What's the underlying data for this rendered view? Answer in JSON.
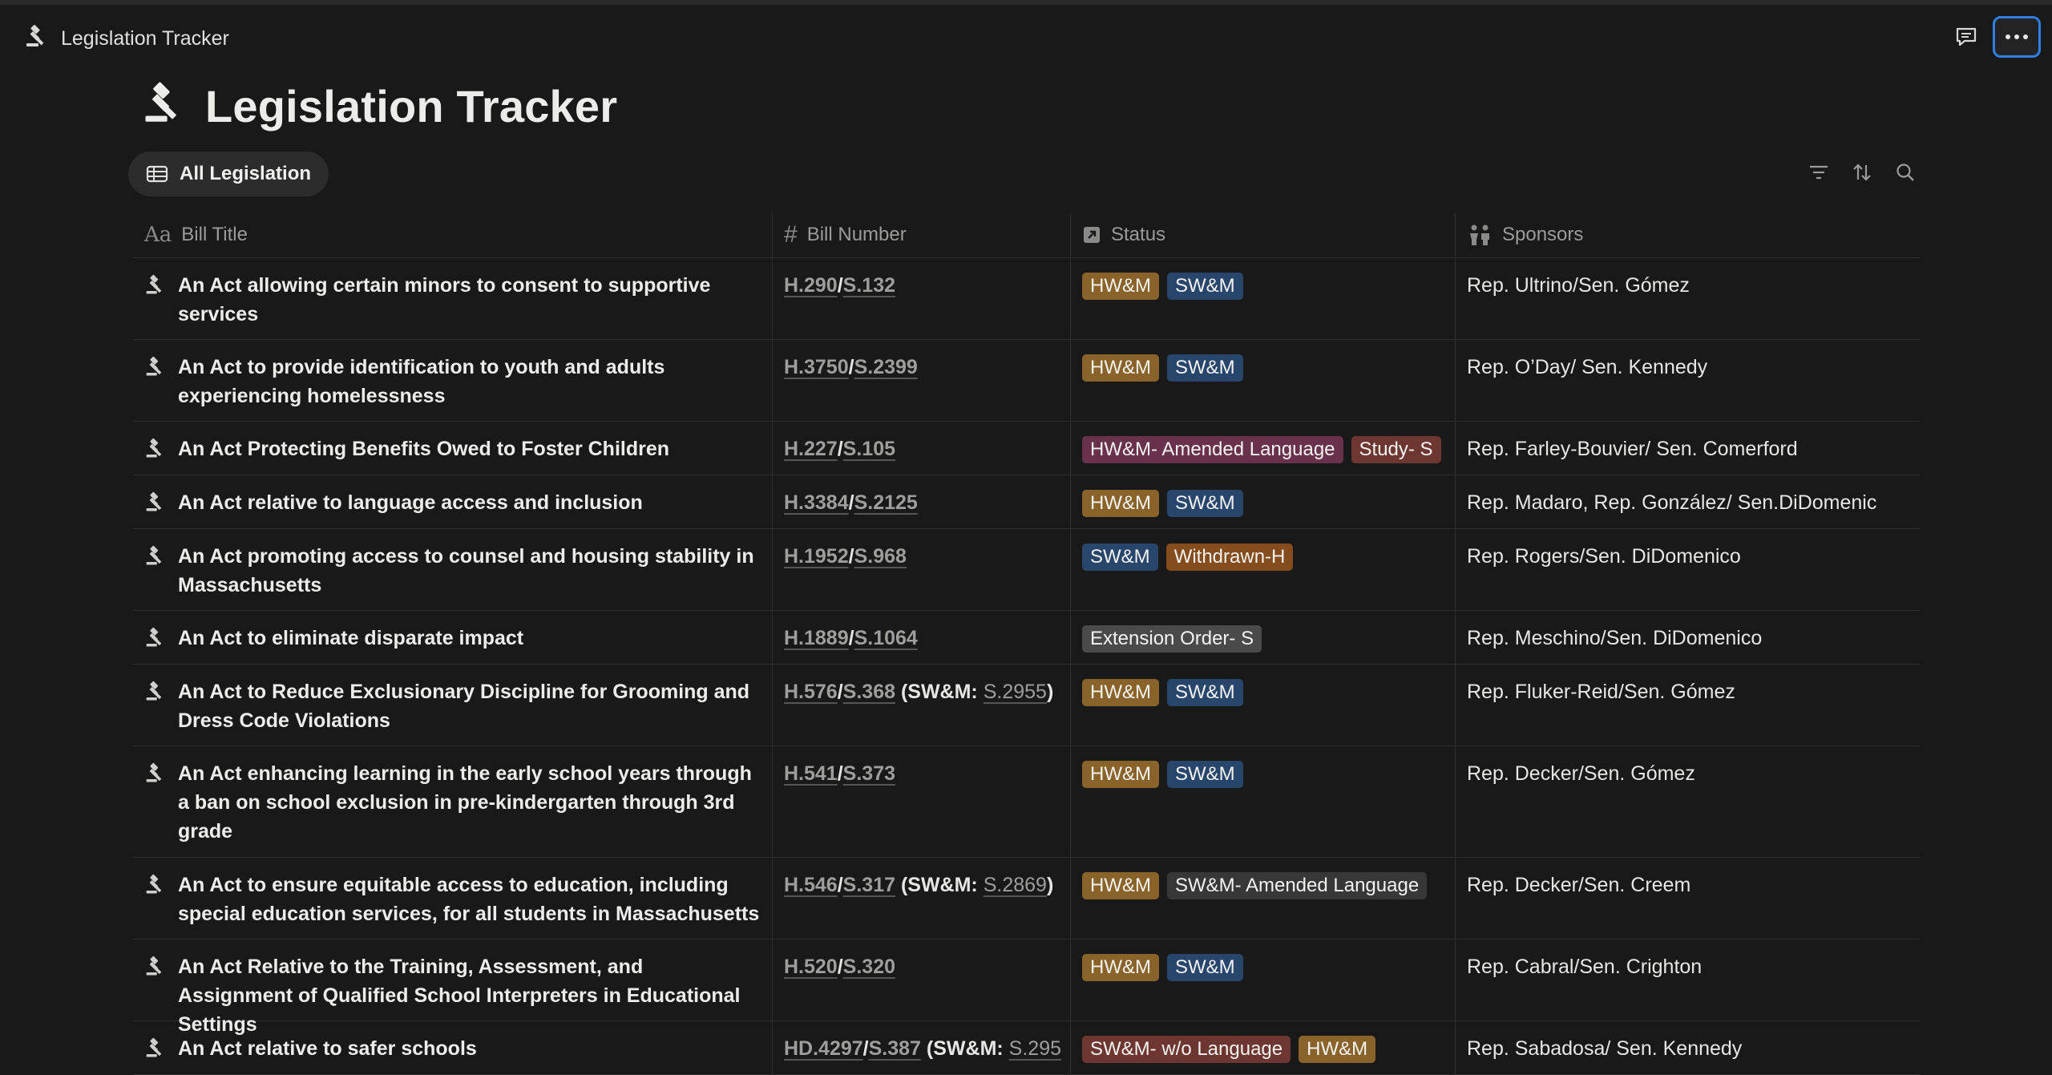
{
  "breadcrumb": {
    "title": "Legislation Tracker"
  },
  "page": {
    "title": "Legislation Tracker"
  },
  "view": {
    "label": "All Legislation"
  },
  "columns": {
    "title": "Bill Title",
    "number": "Bill Number",
    "status": "Status",
    "sponsors": "Sponsors"
  },
  "colors": {
    "hwm": "#89632a",
    "swm": "#28456c",
    "amended_pink": "#69314c",
    "study_orange": "#854c1d",
    "red": "#6e3630",
    "gray": "#4a4a4a",
    "dark": "#373737"
  },
  "rows": [
    {
      "title": "An Act allowing certain minors to consent to supportive services",
      "num": [
        {
          "t": "H.290",
          "link": true
        },
        {
          "t": "/"
        },
        {
          "t": "S.132",
          "link": true
        }
      ],
      "tags": [
        {
          "t": "HW&M",
          "c": "hwm"
        },
        {
          "t": "SW&M",
          "c": "swm"
        }
      ],
      "sponsors": "Rep. Ultrino/Sen. Gómez",
      "h": 101
    },
    {
      "title": "An Act to provide identification to youth and adults experiencing homelessness",
      "num": [
        {
          "t": "H.3750",
          "link": true
        },
        {
          "t": "/"
        },
        {
          "t": "S.2399",
          "link": true
        }
      ],
      "tags": [
        {
          "t": "HW&M",
          "c": "hwm"
        },
        {
          "t": "SW&M",
          "c": "swm"
        }
      ],
      "sponsors": "Rep. O’Day/ Sen. Kennedy",
      "h": 101
    },
    {
      "title": "An Act Protecting Benefits Owed to Foster Children",
      "num": [
        {
          "t": "H.227",
          "link": true
        },
        {
          "t": "/"
        },
        {
          "t": "S.105",
          "link": true
        }
      ],
      "tags": [
        {
          "t": "HW&M- Amended Language",
          "c": "amended_pink"
        },
        {
          "t": "Study- S",
          "c": "red"
        }
      ],
      "sponsors": "Rep. Farley-Bouvier/ Sen. Comerford",
      "h": 66
    },
    {
      "title": "An Act relative to language access and inclusion",
      "num": [
        {
          "t": "H.3384",
          "link": true
        },
        {
          "t": "/"
        },
        {
          "t": "S.2125",
          "link": true
        }
      ],
      "tags": [
        {
          "t": "HW&M",
          "c": "hwm"
        },
        {
          "t": "SW&M",
          "c": "swm"
        }
      ],
      "sponsors": "Rep. Madaro, Rep. González/ Sen.DiDomenic",
      "h": 66
    },
    {
      "title": "An Act promoting  access to counsel and housing stability in Massachusetts",
      "num": [
        {
          "t": "H.1952",
          "link": true
        },
        {
          "t": "/"
        },
        {
          "t": "S.968",
          "link": true
        }
      ],
      "tags": [
        {
          "t": "SW&M",
          "c": "swm"
        },
        {
          "t": "Withdrawn-H",
          "c": "study_orange"
        }
      ],
      "sponsors": "Rep. Rogers/Sen. DiDomenico",
      "h": 101
    },
    {
      "title": "An Act to eliminate disparate impact",
      "num": [
        {
          "t": "H.1889",
          "link": true
        },
        {
          "t": "/"
        },
        {
          "t": "S.1064",
          "link": true
        }
      ],
      "tags": [
        {
          "t": "Extension Order- S",
          "c": "gray"
        }
      ],
      "sponsors": "Rep. Meschino/Sen. DiDomenico",
      "h": 66
    },
    {
      "title": "An Act to Reduce Exclusionary Discipline for Grooming and Dress Code Violations",
      "num": [
        {
          "t": "H.576",
          "link": true
        },
        {
          "t": "/"
        },
        {
          "t": "S.368",
          "link": true
        },
        {
          "t": " (SW&M: "
        },
        {
          "t": "S.2955",
          "light": true
        },
        {
          "t": ")"
        }
      ],
      "tags": [
        {
          "t": "HW&M",
          "c": "hwm"
        },
        {
          "t": "SW&M",
          "c": "swm"
        }
      ],
      "sponsors": "Rep. Fluker-Reid/Sen. Gómez",
      "h": 101
    },
    {
      "title": "An Act enhancing learning in the early school years through a ban on school exclusion in pre-kindergarten through 3rd grade",
      "num": [
        {
          "t": "H.541",
          "link": true
        },
        {
          "t": "/"
        },
        {
          "t": "S.373",
          "link": true
        }
      ],
      "tags": [
        {
          "t": "HW&M",
          "c": "hwm"
        },
        {
          "t": "SW&M",
          "c": "swm"
        }
      ],
      "sponsors": "Rep. Decker/Sen. Gómez",
      "h": 138
    },
    {
      "title": "An Act to ensure equitable access to education, including special education services, for all students in Massachusetts",
      "num": [
        {
          "t": "H.546",
          "link": true
        },
        {
          "t": "/"
        },
        {
          "t": "S.317",
          "link": true
        },
        {
          "t": " (SW&M: "
        },
        {
          "t": "S.2869",
          "light": true
        },
        {
          "t": ")"
        }
      ],
      "tags": [
        {
          "t": "HW&M",
          "c": "hwm"
        },
        {
          "t": "SW&M- Amended Language",
          "c": "dark"
        }
      ],
      "sponsors": "Rep. Decker/Sen. Creem",
      "h": 101
    },
    {
      "title": "An Act Relative to the Training, Assessment, and Assignment of Qualified School Interpreters in Educational Settings",
      "num": [
        {
          "t": "H.520",
          "link": true
        },
        {
          "t": "/"
        },
        {
          "t": "S.320",
          "link": true
        }
      ],
      "tags": [
        {
          "t": "HW&M",
          "c": "hwm"
        },
        {
          "t": "SW&M",
          "c": "swm"
        }
      ],
      "sponsors": "Rep. Cabral/Sen. Crighton",
      "h": 101
    },
    {
      "title": "An Act relative to safer schools",
      "num": [
        {
          "t": "HD.4297",
          "link": true
        },
        {
          "t": "/"
        },
        {
          "t": "S.387",
          "link": true
        },
        {
          "t": " (SW&M: "
        },
        {
          "t": "S.295",
          "light": true
        }
      ],
      "tags": [
        {
          "t": "SW&M- w/o Language",
          "c": "red"
        },
        {
          "t": "HW&M",
          "c": "hwm"
        }
      ],
      "sponsors": "Rep. Sabadosa/ Sen. Kennedy",
      "h": 66
    }
  ]
}
